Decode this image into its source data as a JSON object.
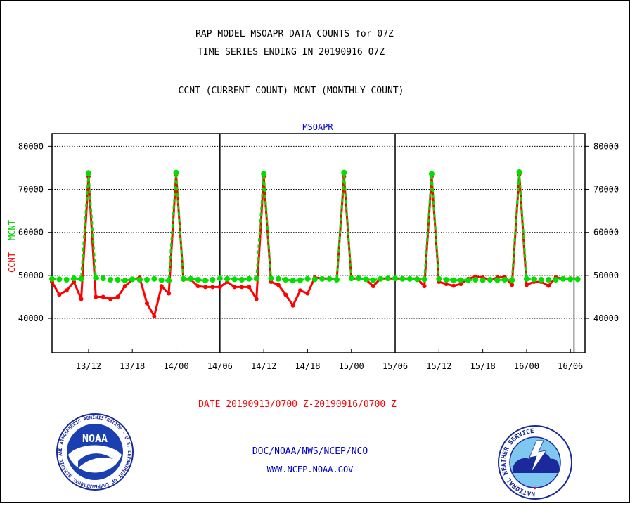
{
  "header": {
    "title_line1": "RAP MODEL MSOAPR DATA COUNTS for 07Z",
    "title_line2": "TIME SERIES ENDING IN 20190916 07Z",
    "subtitle": "CCNT (CURRENT COUNT) MCNT (MONTHLY COUNT)"
  },
  "footer": {
    "date_range": "DATE 20190913/0700 Z-20190916/0700 Z",
    "org": "DOC/NOAA/NWS/NCEP/NCO",
    "url": "WWW.NCEP.NOAA.GOV"
  },
  "logos": {
    "left_text": "NOAA",
    "left_ring": "NATIONAL OCEANIC AND ATMOSPHERIC ADMINISTRATION · U.S. DEPARTMENT OF COMMERCE",
    "right_ring": "NATIONAL WEATHER SERVICE"
  },
  "colors": {
    "ccnt": "#ff0000",
    "mcnt": "#00e000",
    "text_blue": "#0000cc",
    "text_red": "#ff0000"
  },
  "chart_data": {
    "type": "line",
    "title": "MSOAPR",
    "ylabel_ccnt": "CCNT",
    "ylabel_mcnt": "MCNT",
    "x_unit": "hours from 20190913/0700 Z",
    "x_start_label": "20190913/0700 Z",
    "xlim": [
      0,
      73
    ],
    "ylim": [
      32000,
      83000
    ],
    "y_ticks": [
      40000,
      50000,
      60000,
      70000,
      80000
    ],
    "y_tick_labels": [
      "40000",
      "50000",
      "60000",
      "70000",
      "80000"
    ],
    "x_ticks": [
      5,
      11,
      17,
      23,
      29,
      35,
      41,
      47,
      53,
      59,
      65,
      71
    ],
    "x_tick_labels": [
      "13/12",
      "13/18",
      "14/00",
      "14/06",
      "14/12",
      "14/18",
      "15/00",
      "15/06",
      "15/12",
      "15/18",
      "16/00",
      "16/06"
    ],
    "x_dividers": [
      23,
      47,
      71.5
    ],
    "grid": "horizontal dotted",
    "series": [
      {
        "name": "CCNT",
        "color": "#ff0000",
        "x": [
          0,
          1,
          2,
          3,
          4,
          5,
          6,
          7,
          8,
          9,
          10,
          11,
          12,
          13,
          14,
          15,
          16,
          17,
          18,
          19,
          20,
          21,
          22,
          23,
          24,
          25,
          26,
          27,
          28,
          29,
          30,
          31,
          32,
          33,
          34,
          35,
          36,
          37,
          38,
          39,
          40,
          41,
          42,
          43,
          44,
          45,
          46,
          47,
          48,
          49,
          50,
          51,
          52,
          53,
          54,
          55,
          56,
          57,
          58,
          59,
          60,
          61,
          62,
          63,
          64,
          65,
          66,
          67,
          68,
          69,
          70,
          71,
          72
        ],
        "values": [
          48500,
          45500,
          46500,
          48500,
          44500,
          73000,
          45000,
          45000,
          44500,
          45000,
          47500,
          49000,
          49500,
          43500,
          40500,
          47500,
          45800,
          73500,
          49000,
          49000,
          47500,
          47300,
          47300,
          47300,
          48500,
          47300,
          47300,
          47300,
          44500,
          73000,
          48500,
          47800,
          45500,
          43000,
          46500,
          45800,
          49500,
          49300,
          49300,
          49000,
          73000,
          49300,
          49300,
          49000,
          47500,
          49300,
          49300,
          49300,
          49300,
          49300,
          49300,
          47500,
          73000,
          48500,
          48000,
          47600,
          48000,
          49200,
          49700,
          49500,
          49000,
          49500,
          49600,
          47800,
          73500,
          47800,
          48500,
          48500,
          47600,
          49500,
          49300,
          49300,
          49300
        ]
      },
      {
        "name": "MCNT",
        "color": "#00e000",
        "x": [
          0,
          1,
          2,
          3,
          4,
          5,
          6,
          7,
          8,
          9,
          10,
          11,
          12,
          13,
          14,
          15,
          16,
          17,
          18,
          19,
          20,
          21,
          22,
          23,
          24,
          25,
          26,
          27,
          28,
          29,
          30,
          31,
          32,
          33,
          34,
          35,
          36,
          37,
          38,
          39,
          40,
          41,
          42,
          43,
          44,
          45,
          46,
          47,
          48,
          49,
          50,
          51,
          52,
          53,
          54,
          55,
          56,
          57,
          58,
          59,
          60,
          61,
          62,
          63,
          64,
          65,
          66,
          67,
          68,
          69,
          70,
          71,
          72
        ],
        "values": [
          49200,
          49100,
          49000,
          49300,
          49200,
          73800,
          49400,
          49300,
          49000,
          49000,
          48800,
          49100,
          49000,
          49000,
          49200,
          48900,
          48800,
          73900,
          49200,
          49200,
          49000,
          48800,
          49000,
          49300,
          49200,
          49100,
          49000,
          49200,
          49300,
          73600,
          49300,
          49200,
          49000,
          48800,
          48900,
          49200,
          49100,
          49200,
          49200,
          49000,
          73900,
          49300,
          49300,
          49100,
          48900,
          49200,
          49300,
          49300,
          49200,
          49200,
          49100,
          49100,
          73600,
          49200,
          49000,
          48900,
          48900,
          48900,
          49000,
          48900,
          49000,
          48900,
          49000,
          48900,
          74000,
          49200,
          49100,
          49000,
          49000,
          49000,
          49200,
          49100,
          49100
        ]
      }
    ]
  }
}
